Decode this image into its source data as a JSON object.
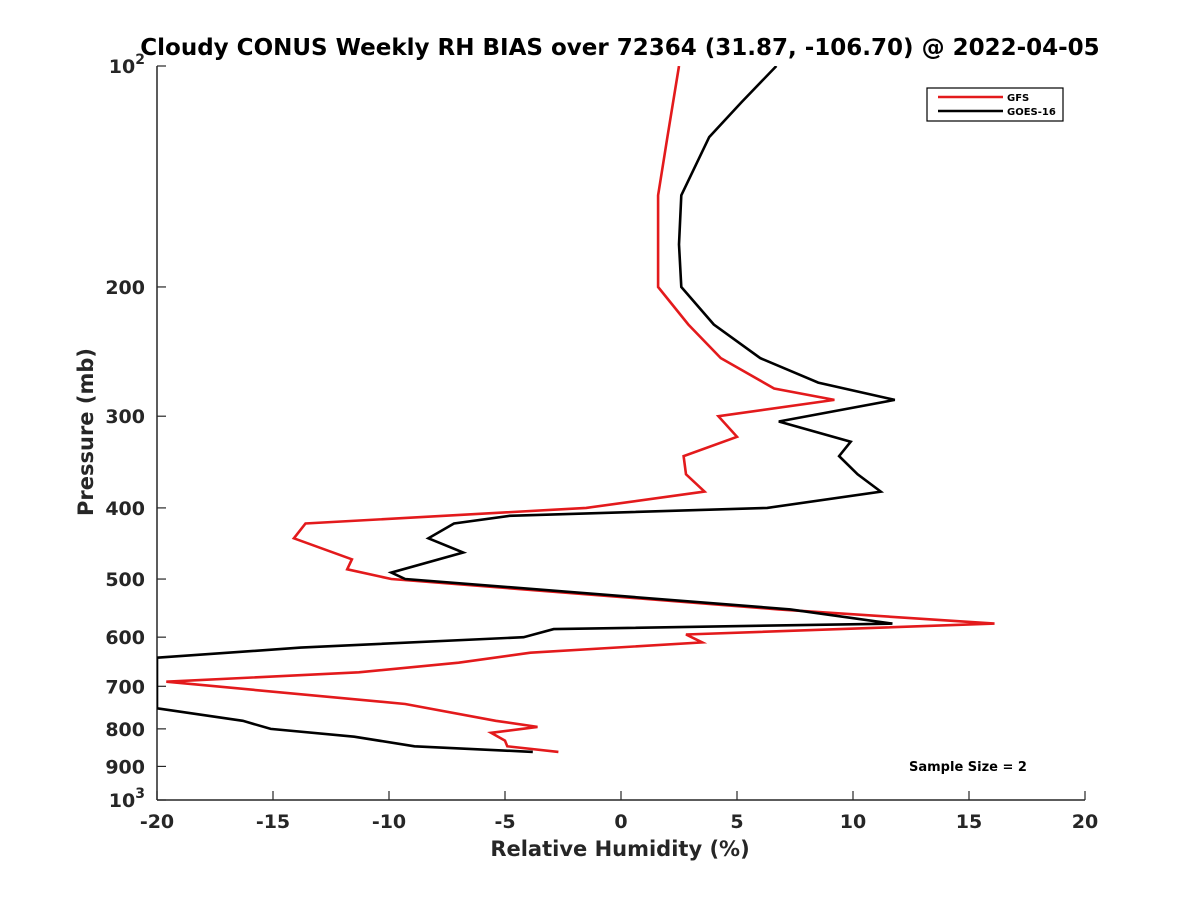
{
  "chart_data": {
    "type": "line",
    "title": "Cloudy CONUS Weekly RH BIAS over 72364 (31.87, -106.70) @ 2022-04-05",
    "xlabel": "Relative Humidity (%)",
    "ylabel": "Pressure (mb)",
    "xlim": [
      -20,
      20
    ],
    "ylim": [
      100,
      1000
    ],
    "yscale": "log",
    "y_reversed": true,
    "grid": false,
    "legend_position": "top-right",
    "xticks": [
      -20,
      -15,
      -10,
      -5,
      0,
      5,
      10,
      15,
      20
    ],
    "xtick_labels": [
      "-20",
      "-15",
      "-10",
      "-5",
      "0",
      "5",
      "10",
      "15",
      "20"
    ],
    "yticks": [
      100,
      200,
      300,
      400,
      500,
      600,
      700,
      800,
      900,
      1000
    ],
    "ytick_labels": [
      {
        "base": "10",
        "exp": "2"
      },
      {
        "base": "200",
        "exp": ""
      },
      {
        "base": "300",
        "exp": ""
      },
      {
        "base": "400",
        "exp": ""
      },
      {
        "base": "500",
        "exp": ""
      },
      {
        "base": "600",
        "exp": ""
      },
      {
        "base": "700",
        "exp": ""
      },
      {
        "base": "800",
        "exp": ""
      },
      {
        "base": "900",
        "exp": ""
      },
      {
        "base": "10",
        "exp": "3"
      }
    ],
    "series": [
      {
        "name": "GFS",
        "color": "#e31a1c",
        "points": [
          [
            2.5,
            100
          ],
          [
            2.0,
            125
          ],
          [
            1.6,
            150
          ],
          [
            1.6,
            175
          ],
          [
            1.6,
            200
          ],
          [
            2.9,
            225
          ],
          [
            4.3,
            250
          ],
          [
            6.6,
            275
          ],
          [
            9.2,
            285
          ],
          [
            4.2,
            300
          ],
          [
            5.0,
            320
          ],
          [
            2.7,
            340
          ],
          [
            2.8,
            360
          ],
          [
            3.6,
            380
          ],
          [
            -1.5,
            400
          ],
          [
            -13.6,
            420
          ],
          [
            -14.1,
            440
          ],
          [
            -11.6,
            470
          ],
          [
            -11.8,
            485
          ],
          [
            -9.9,
            500
          ],
          [
            6.8,
            550
          ],
          [
            16.1,
            575
          ],
          [
            2.8,
            595
          ],
          [
            3.5,
            610
          ],
          [
            -3.9,
            630
          ],
          [
            -7.0,
            650
          ],
          [
            -11.3,
            670
          ],
          [
            -19.6,
            690
          ],
          [
            -9.3,
            740
          ],
          [
            -5.4,
            780
          ],
          [
            -3.6,
            795
          ],
          [
            -5.6,
            810
          ],
          [
            -5.0,
            830
          ],
          [
            -4.9,
            845
          ],
          [
            -2.7,
            860
          ]
        ]
      },
      {
        "name": "GOES-16",
        "color": "#000000",
        "points": [
          [
            6.7,
            100
          ],
          [
            5.2,
            112
          ],
          [
            3.8,
            125
          ],
          [
            2.6,
            150
          ],
          [
            2.5,
            175
          ],
          [
            2.6,
            200
          ],
          [
            4.0,
            225
          ],
          [
            6.0,
            250
          ],
          [
            8.5,
            270
          ],
          [
            11.8,
            285
          ],
          [
            6.8,
            305
          ],
          [
            9.9,
            325
          ],
          [
            9.4,
            340
          ],
          [
            10.2,
            360
          ],
          [
            11.2,
            380
          ],
          [
            6.3,
            400
          ],
          [
            -4.8,
            410
          ],
          [
            -7.2,
            420
          ],
          [
            -8.3,
            440
          ],
          [
            -6.8,
            460
          ],
          [
            -9.9,
            490
          ],
          [
            -9.3,
            500
          ],
          [
            7.3,
            550
          ],
          [
            11.7,
            575
          ],
          [
            -2.9,
            585
          ],
          [
            -4.2,
            600
          ],
          [
            -13.8,
            620
          ],
          [
            -20.0,
            640
          ],
          [
            -20.0,
            750
          ],
          [
            -16.3,
            780
          ],
          [
            -15.1,
            800
          ],
          [
            -11.5,
            820
          ],
          [
            -8.9,
            845
          ],
          [
            -3.8,
            860
          ]
        ]
      }
    ],
    "annotation": "Sample Size = 2"
  }
}
